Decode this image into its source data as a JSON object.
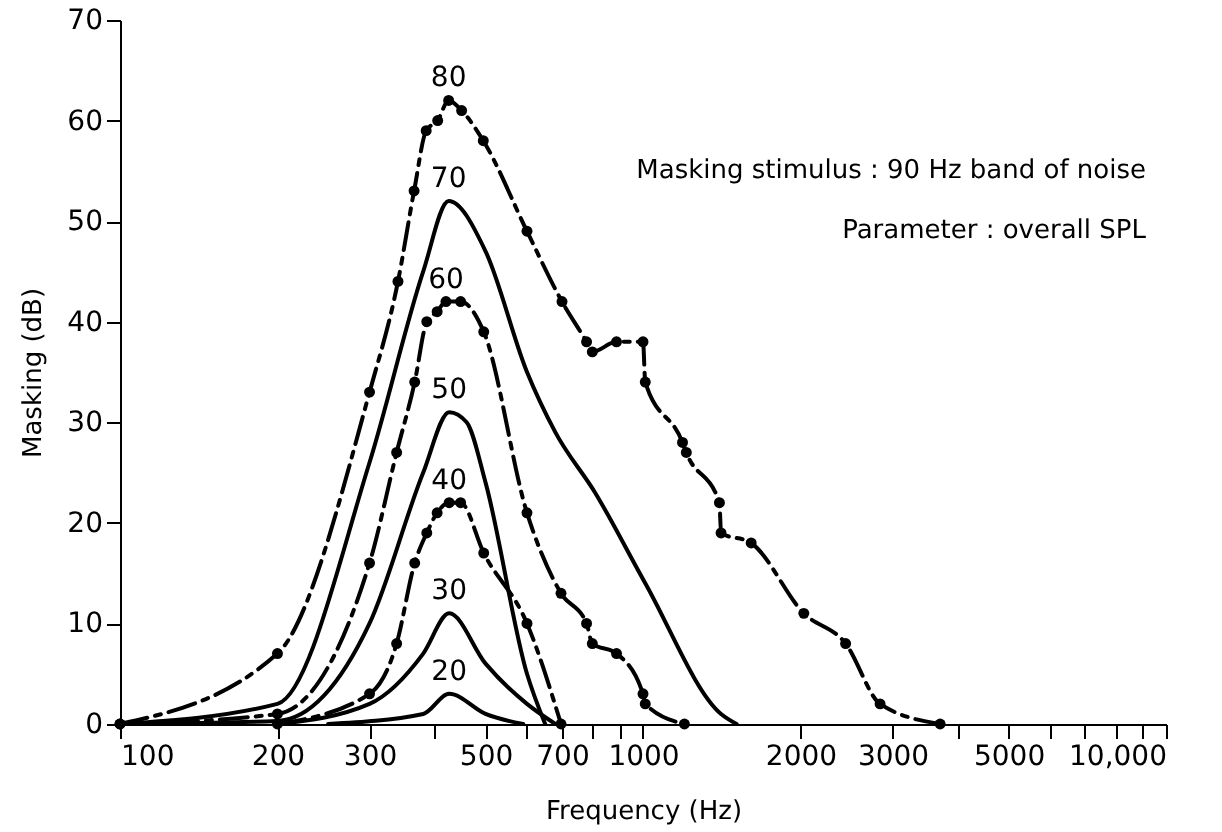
{
  "chart_data": {
    "type": "line",
    "xlabel": "Frequency (Hz)",
    "ylabel": "Masking (dB)",
    "log": "x",
    "xlim": [
      100,
      10000
    ],
    "xticks": [
      100,
      200,
      300,
      {
        "value": 400,
        "label": null
      },
      500,
      {
        "value": 600,
        "label": null
      },
      700,
      {
        "value": 800,
        "label": null
      },
      {
        "value": 900,
        "label": null
      },
      1000,
      2000,
      3000,
      {
        "value": 4000,
        "label": null
      },
      5000,
      {
        "value": 6000,
        "label": null
      },
      {
        "value": 7000,
        "label": null
      },
      {
        "value": 8000,
        "label": null
      },
      {
        "value": 9000,
        "label": null
      },
      {
        "value": 10000,
        "label": "10,000"
      }
    ],
    "ylim": [
      0,
      70
    ],
    "yticks": [
      0,
      10,
      20,
      30,
      40,
      50,
      60,
      70
    ],
    "grid": false,
    "annotations": [
      "Masking stimulus : 90 Hz band of noise",
      "Parameter : overall SPL"
    ],
    "series": [
      {
        "name": "80",
        "color": "#000000",
        "line_style": "dashed",
        "marker": "circle",
        "x": [
          100,
          200,
          300,
          340,
          365,
          385,
          405,
          425,
          450,
          495,
          600,
          700,
          780,
          800,
          890,
          1000,
          1010,
          1190,
          1210,
          1400,
          1410,
          1610,
          2030,
          2440,
          2840,
          3700
        ],
        "values": [
          0,
          7,
          33,
          44,
          53,
          59,
          60,
          62,
          61,
          58,
          49,
          42,
          38,
          37,
          38,
          38,
          34,
          28,
          27,
          22,
          19,
          18,
          11,
          8,
          2,
          0
        ]
      },
      {
        "name": "70",
        "color": "#000000",
        "line_style": "solid",
        "marker": "none",
        "x": [
          100,
          200,
          300,
          380,
          425,
          500,
          600,
          680,
          810,
          1010,
          1410,
          1510
        ],
        "values": [
          0,
          2,
          26,
          45,
          52,
          47,
          35,
          29,
          23,
          14,
          1,
          0
        ]
      },
      {
        "name": "60",
        "color": "#000000",
        "line_style": "dashed",
        "marker": "circle",
        "x": [
          100,
          200,
          300,
          338,
          366,
          386,
          404,
          420,
          448,
          496,
          600,
          697,
          780,
          800,
          890,
          1000,
          1010,
          1200
        ],
        "values": [
          0,
          1,
          16,
          27,
          34,
          40,
          41,
          42,
          42,
          39,
          21,
          13,
          10,
          8,
          7,
          3,
          2,
          0
        ]
      },
      {
        "name": "50",
        "color": "#000000",
        "line_style": "solid",
        "marker": "none",
        "x": [
          100,
          200,
          300,
          380,
          426,
          460,
          500,
          600,
          650
        ],
        "values": [
          0,
          0.3,
          10,
          25,
          31,
          30,
          24,
          5,
          0
        ]
      },
      {
        "name": "40",
        "color": "#000000",
        "line_style": "dashed",
        "marker": "circle",
        "x": [
          200,
          300,
          338,
          366,
          386,
          404,
          426,
          448,
          496,
          600,
          697
        ],
        "values": [
          0,
          3,
          8,
          16,
          19,
          21,
          22,
          22,
          17,
          10,
          0
        ]
      },
      {
        "name": "30",
        "color": "#000000",
        "line_style": "solid",
        "marker": "none",
        "x": [
          200,
          300,
          380,
          426,
          500,
          600,
          680
        ],
        "values": [
          0,
          2,
          7,
          11,
          6,
          2,
          0
        ]
      },
      {
        "name": "20",
        "color": "#000000",
        "line_style": "solid",
        "marker": "none",
        "x": [
          250,
          380,
          426,
          500,
          590
        ],
        "values": [
          0,
          1,
          3,
          1,
          0
        ]
      }
    ]
  }
}
